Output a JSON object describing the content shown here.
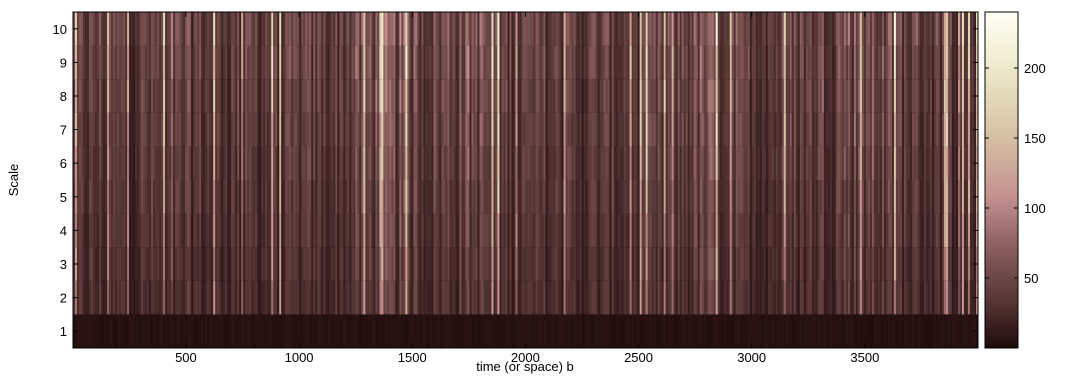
{
  "chart_data": {
    "type": "heatmap",
    "title": "",
    "xlabel": "time (or space) b",
    "ylabel": "Scale",
    "xlim": [
      1,
      4000
    ],
    "ylim": [
      0.5,
      10.5
    ],
    "x_ticks": [
      500,
      1000,
      1500,
      2000,
      2500,
      3000,
      3500
    ],
    "y_ticks": [
      1,
      2,
      3,
      4,
      5,
      6,
      7,
      8,
      9,
      10
    ],
    "scales": [
      1,
      2,
      3,
      4,
      5,
      6,
      7,
      8,
      9,
      10
    ],
    "colormap": "pink",
    "colorbar": {
      "range": [
        0,
        240
      ],
      "ticks": [
        50,
        100,
        150,
        200
      ]
    },
    "colors": {
      "low": "#1e0a0a",
      "mid": "#c49090",
      "high": "#fffff5"
    }
  }
}
